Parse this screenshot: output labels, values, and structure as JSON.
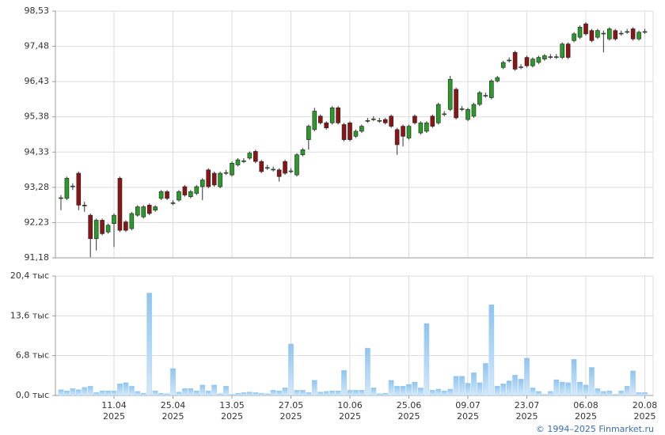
{
  "chart_data": [
    {
      "type": "candlestick",
      "open": [
        92.95,
        92.95,
        93.3,
        93.7,
        92.75,
        92.45,
        91.75,
        92.3,
        91.95,
        92.2,
        93.55,
        92.25,
        92.05,
        92.45,
        92.4,
        92.75,
        92.6,
        92.95,
        93.15,
        92.8,
        92.9,
        93.3,
        93.0,
        93.1,
        93.3,
        93.8,
        93.7,
        93.3,
        93.7,
        93.65,
        93.95,
        94.05,
        94.15,
        94.35,
        94.05,
        93.85,
        93.8,
        93.8,
        94.05,
        93.75,
        93.65,
        94.25,
        94.7,
        95.0,
        95.4,
        95.2,
        95.2,
        95.65,
        95.15,
        95.2,
        94.8,
        94.95,
        95.25,
        95.3,
        95.25,
        95.3,
        95.4,
        95.0,
        95.1,
        94.75,
        95.4,
        94.9,
        94.95,
        95.4,
        95.2,
        95.45,
        95.6,
        96.2,
        95.6,
        95.3,
        95.4,
        95.75,
        96.0,
        95.95,
        96.45,
        96.85,
        97.05,
        97.3,
        96.85,
        97.15,
        96.9,
        97.0,
        97.1,
        97.15,
        97.15,
        97.15,
        97.55,
        97.65,
        97.75,
        98.15,
        97.95,
        97.75,
        97.85,
        97.7,
        97.95,
        97.85,
        97.9,
        98.0,
        97.7,
        97.9
      ],
      "high": [
        93.05,
        93.6,
        93.4,
        93.75,
        92.85,
        92.5,
        92.35,
        92.35,
        92.2,
        92.5,
        93.6,
        92.3,
        92.55,
        92.75,
        92.75,
        92.8,
        92.75,
        93.2,
        93.2,
        92.9,
        93.2,
        93.35,
        93.2,
        93.35,
        93.55,
        93.85,
        93.75,
        93.75,
        93.8,
        94.05,
        94.15,
        94.15,
        94.35,
        94.4,
        94.1,
        93.95,
        93.9,
        93.85,
        94.1,
        93.85,
        94.3,
        94.45,
        95.15,
        95.65,
        95.45,
        95.25,
        95.7,
        95.7,
        95.2,
        95.25,
        95.0,
        95.15,
        95.35,
        95.4,
        95.35,
        95.35,
        95.45,
        95.05,
        95.15,
        95.15,
        95.45,
        95.25,
        95.25,
        95.45,
        95.8,
        95.55,
        96.6,
        96.25,
        95.7,
        95.65,
        95.8,
        96.15,
        96.1,
        96.5,
        96.6,
        97.05,
        97.15,
        97.35,
        96.95,
        97.2,
        97.15,
        97.2,
        97.25,
        97.25,
        97.25,
        97.6,
        97.6,
        97.9,
        98.1,
        98.2,
        98.0,
        98.0,
        97.95,
        98.05,
        98.0,
        97.95,
        98.0,
        98.05,
        97.95,
        98.0
      ],
      "low": [
        92.6,
        92.9,
        93.2,
        92.6,
        92.55,
        91.2,
        91.4,
        91.85,
        91.9,
        91.5,
        91.95,
        91.95,
        92.0,
        92.4,
        92.35,
        92.45,
        92.55,
        92.9,
        92.9,
        92.75,
        92.85,
        93.0,
        92.95,
        93.05,
        92.9,
        93.25,
        93.3,
        93.25,
        93.65,
        93.6,
        93.9,
        94.0,
        94.1,
        94.0,
        93.7,
        93.8,
        93.75,
        93.45,
        93.65,
        93.7,
        93.6,
        94.2,
        94.4,
        94.95,
        95.15,
        95.0,
        95.15,
        95.15,
        94.65,
        94.65,
        94.75,
        94.9,
        95.2,
        95.25,
        95.2,
        95.15,
        95.05,
        94.25,
        94.5,
        94.7,
        95.15,
        94.85,
        94.9,
        95.05,
        95.15,
        95.4,
        95.55,
        95.3,
        95.55,
        95.25,
        95.35,
        95.7,
        95.95,
        95.9,
        96.4,
        96.8,
        97.0,
        96.75,
        96.8,
        96.85,
        96.85,
        96.95,
        97.05,
        97.1,
        97.1,
        97.1,
        97.1,
        97.6,
        97.7,
        97.8,
        97.6,
        97.7,
        97.3,
        97.65,
        97.65,
        97.8,
        97.85,
        97.65,
        97.65,
        97.85
      ],
      "close": [
        92.97,
        93.55,
        93.32,
        92.75,
        92.73,
        91.75,
        92.3,
        91.9,
        92.15,
        92.45,
        92.0,
        92.0,
        92.5,
        92.7,
        92.7,
        92.5,
        92.7,
        93.15,
        92.95,
        92.82,
        93.15,
        93.05,
        93.15,
        93.3,
        93.5,
        93.3,
        93.35,
        93.7,
        93.72,
        94.0,
        94.1,
        94.07,
        94.3,
        94.05,
        93.75,
        93.87,
        93.82,
        93.6,
        93.7,
        93.77,
        94.25,
        94.4,
        95.1,
        95.55,
        95.2,
        95.05,
        95.65,
        95.2,
        94.7,
        94.7,
        94.95,
        95.1,
        95.27,
        95.32,
        95.27,
        95.2,
        95.1,
        94.55,
        94.8,
        95.1,
        95.2,
        95.2,
        95.2,
        95.1,
        95.75,
        95.47,
        96.5,
        95.35,
        95.62,
        95.6,
        95.75,
        96.1,
        96.02,
        96.45,
        96.55,
        97.0,
        97.07,
        96.8,
        96.87,
        96.9,
        97.1,
        97.15,
        97.2,
        97.17,
        97.17,
        97.55,
        97.15,
        97.85,
        98.05,
        97.85,
        97.65,
        97.95,
        97.87,
        98.0,
        97.7,
        97.87,
        97.92,
        97.7,
        97.9,
        97.92
      ],
      "up_color": "#2a9a2a",
      "down_color": "#8b1414",
      "ylim": [
        91.18,
        98.53
      ],
      "yticks": [
        {
          "value": 91.18,
          "label": "91,18"
        },
        {
          "value": 92.23,
          "label": "92,23"
        },
        {
          "value": 93.28,
          "label": "93,28"
        },
        {
          "value": 94.33,
          "label": "94,33"
        },
        {
          "value": 95.38,
          "label": "95,38"
        },
        {
          "value": 96.43,
          "label": "96,43"
        },
        {
          "value": 97.48,
          "label": "97,48"
        },
        {
          "value": 98.53,
          "label": "98,53"
        }
      ],
      "grid": true
    },
    {
      "type": "bar",
      "categories": [
        null,
        null,
        null,
        null,
        null,
        null,
        null,
        null,
        null,
        "11.04",
        null,
        null,
        null,
        null,
        null,
        null,
        null,
        null,
        null,
        "25.04",
        null,
        null,
        null,
        null,
        null,
        null,
        null,
        null,
        null,
        "13.05",
        null,
        null,
        null,
        null,
        null,
        null,
        null,
        null,
        null,
        "27.05",
        null,
        null,
        null,
        null,
        null,
        null,
        null,
        null,
        null,
        "10.06",
        null,
        null,
        null,
        null,
        null,
        null,
        null,
        null,
        null,
        "25.06",
        null,
        null,
        null,
        null,
        null,
        null,
        null,
        null,
        null,
        "09.07",
        null,
        null,
        null,
        null,
        null,
        null,
        null,
        null,
        null,
        "23.07",
        null,
        null,
        null,
        null,
        null,
        null,
        null,
        null,
        null,
        "06.08",
        null,
        null,
        null,
        null,
        null,
        null,
        null,
        null,
        null,
        "20.08"
      ],
      "category_years": [
        null,
        null,
        null,
        null,
        null,
        null,
        null,
        null,
        null,
        "2025",
        null,
        null,
        null,
        null,
        null,
        null,
        null,
        null,
        null,
        "2025",
        null,
        null,
        null,
        null,
        null,
        null,
        null,
        null,
        null,
        "2025",
        null,
        null,
        null,
        null,
        null,
        null,
        null,
        null,
        null,
        "2025",
        null,
        null,
        null,
        null,
        null,
        null,
        null,
        null,
        null,
        "2025",
        null,
        null,
        null,
        null,
        null,
        null,
        null,
        null,
        null,
        "2025",
        null,
        null,
        null,
        null,
        null,
        null,
        null,
        null,
        null,
        "2025",
        null,
        null,
        null,
        null,
        null,
        null,
        null,
        null,
        null,
        "2025",
        null,
        null,
        null,
        null,
        null,
        null,
        null,
        null,
        null,
        "2025",
        null,
        null,
        null,
        null,
        null,
        null,
        null,
        null,
        null,
        "2025"
      ],
      "values": [
        1.0,
        0.8,
        1.2,
        1.0,
        1.4,
        1.6,
        0.5,
        0.8,
        0.8,
        0.8,
        2.0,
        2.2,
        1.6,
        0.7,
        0.4,
        17.5,
        0.8,
        0.4,
        0.3,
        4.6,
        0.6,
        1.2,
        1.2,
        0.8,
        1.8,
        0.8,
        1.8,
        0.3,
        1.6,
        0.2,
        0.4,
        0.5,
        0.6,
        0.5,
        0.4,
        0.3,
        0.9,
        0.8,
        1.3,
        8.8,
        0.9,
        0.9,
        0.5,
        2.6,
        0.6,
        0.7,
        0.8,
        0.8,
        4.3,
        0.9,
        0.9,
        0.9,
        8.1,
        1.3,
        0.3,
        0.4,
        2.6,
        1.6,
        1.6,
        1.9,
        2.3,
        1.3,
        12.3,
        0.9,
        1.1,
        0.8,
        1.1,
        3.3,
        3.3,
        2.1,
        3.9,
        2.2,
        5.5,
        15.5,
        1.6,
        2.0,
        2.5,
        3.5,
        2.8,
        6.4,
        1.3,
        0.7,
        0.2,
        0.7,
        2.7,
        2.3,
        2.2,
        6.2,
        2.3,
        1.8,
        4.8,
        1.2,
        0.7,
        0.8,
        0.2,
        0.8,
        1.6,
        4.2,
        0.5,
        0.5
      ],
      "color": "#9fcdf2",
      "ylim": [
        0,
        20.4
      ],
      "yticks": [
        {
          "value": 0,
          "label": "0,0 тыс"
        },
        {
          "value": 6.8,
          "label": "6,8 тыс"
        },
        {
          "value": 13.6,
          "label": "13,6 тыс"
        },
        {
          "value": 20.4,
          "label": "20,4 тыс"
        }
      ],
      "grid": true
    }
  ],
  "copyright": "© 1994–2025 Finmarket.ru"
}
